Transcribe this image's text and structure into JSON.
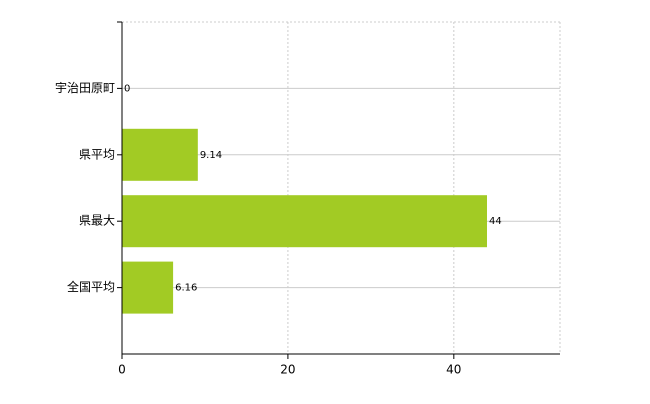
{
  "chart_data": {
    "type": "bar",
    "orientation": "horizontal",
    "categories": [
      "宇治田原町",
      "県平均",
      "県最大",
      "全国平均"
    ],
    "values": [
      0,
      9.14,
      44,
      6.16
    ],
    "color": "#a2cb24",
    "xlim": [
      0,
      52.8
    ],
    "xticks": [
      0,
      20,
      40
    ],
    "grid": true
  }
}
